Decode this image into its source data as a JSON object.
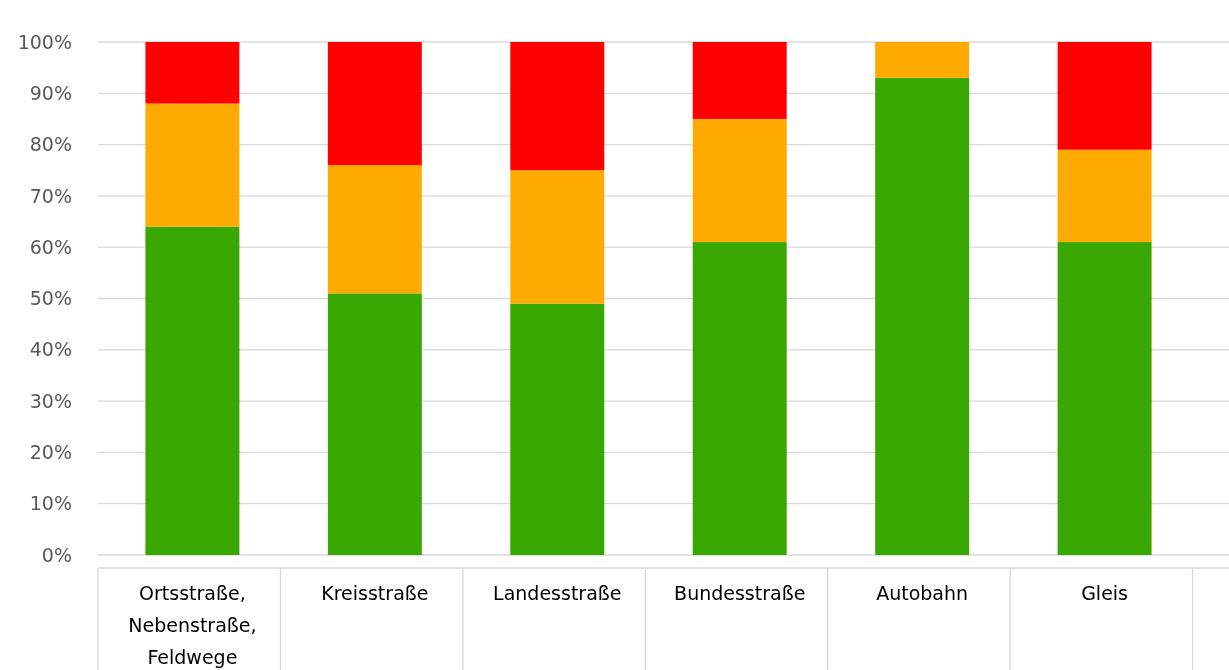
{
  "chart_data": {
    "type": "bar",
    "stacked": true,
    "categories": [
      "Ortsstraße, Nebenstraße, Feldwege",
      "Kreisstraße",
      "Landesstraße",
      "Bundesstraße",
      "Autobahn",
      "Gleis"
    ],
    "series": [
      {
        "color": "#38a800",
        "values": [
          64,
          51,
          49,
          61,
          93,
          61
        ]
      },
      {
        "color": "#ffaa00",
        "values": [
          24,
          25,
          26,
          24,
          7,
          18
        ]
      },
      {
        "color": "#ff0000",
        "values": [
          12,
          24,
          25,
          15,
          0,
          21
        ]
      }
    ],
    "ylim": [
      0,
      100
    ],
    "yticks": [
      {
        "value": 0,
        "label": "0%"
      },
      {
        "value": 10,
        "label": "10%"
      },
      {
        "value": 20,
        "label": "20%"
      },
      {
        "value": 30,
        "label": "30%"
      },
      {
        "value": 40,
        "label": "40%"
      },
      {
        "value": 50,
        "label": "50%"
      },
      {
        "value": 60,
        "label": "60%"
      },
      {
        "value": 70,
        "label": "70%"
      },
      {
        "value": 80,
        "label": "80%"
      },
      {
        "value": 90,
        "label": "90%"
      },
      {
        "value": 100,
        "label": "100%"
      }
    ],
    "grid": "y"
  }
}
